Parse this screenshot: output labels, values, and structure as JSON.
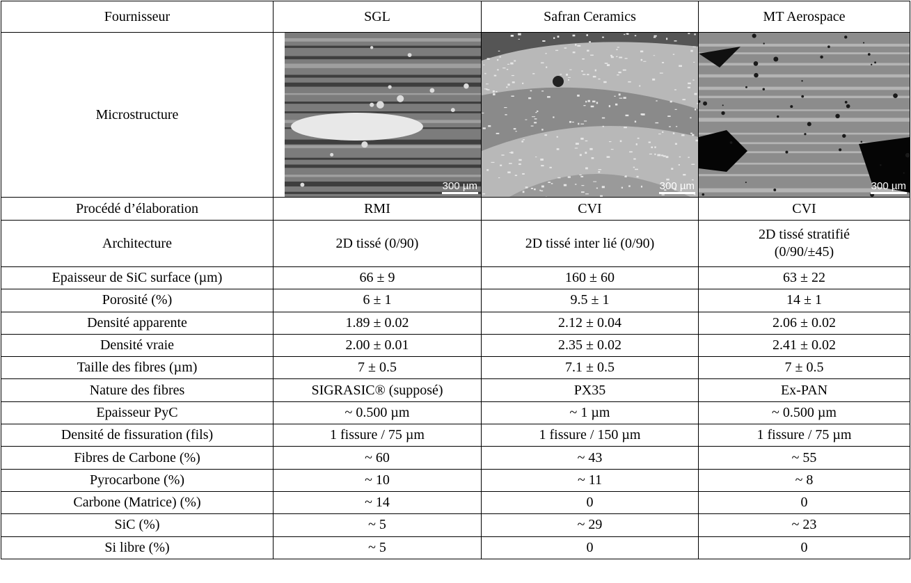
{
  "table": {
    "header": [
      "Fournisseur",
      "SGL",
      "Safran Ceramics",
      "MT Aerospace"
    ],
    "microstructure": {
      "label": "Microstructure",
      "scale_bars": [
        "300 µm",
        "300 µm",
        "300 µm"
      ]
    },
    "rows": [
      [
        "Procédé d’élaboration",
        "RMI",
        "CVI",
        "CVI"
      ],
      [
        "Architecture",
        "2D tissé (0/90)",
        "2D tissé inter lié (0/90)",
        "2D tissé stratifié\n(0/90/±45)"
      ],
      [
        "Epaisseur de SiC surface (µm)",
        "66 ± 9",
        "160 ± 60",
        "63 ± 22"
      ],
      [
        "Porosité (%)",
        "6 ± 1",
        "9.5 ± 1",
        "14 ± 1"
      ],
      [
        "Densité apparente",
        "1.89 ± 0.02",
        "2.12 ± 0.04",
        "2.06 ± 0.02"
      ],
      [
        "Densité vraie",
        "2.00 ± 0.01",
        "2.35 ± 0.02",
        "2.41 ± 0.02"
      ],
      [
        "Taille des fibres (µm)",
        "7 ± 0.5",
        "7.1 ± 0.5",
        "7 ± 0.5"
      ],
      [
        "Nature des fibres",
        "SIGRASIC® (supposé)",
        "PX35",
        "Ex-PAN"
      ],
      [
        "Epaisseur PyC",
        "~ 0.500 µm",
        "~ 1 µm",
        "~ 0.500 µm"
      ],
      [
        "Densité de fissuration (fils)",
        "1 fissure / 75 µm",
        "1 fissure / 150 µm",
        "1 fissure / 75 µm"
      ],
      [
        "Fibres de Carbone (%)",
        "~ 60",
        "~ 43",
        "~ 55"
      ],
      [
        "Pyrocarbone (%)",
        "~ 10",
        "~ 11",
        "~ 8"
      ],
      [
        "Carbone (Matrice) (%)",
        "~ 14",
        "0",
        "0"
      ],
      [
        "SiC (%)",
        "~ 5",
        "~ 29",
        "~ 23"
      ],
      [
        "Si libre (%)",
        "~ 5",
        "0",
        "0"
      ]
    ]
  }
}
